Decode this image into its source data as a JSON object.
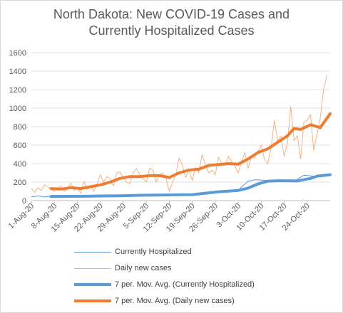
{
  "title_line1": "North Dakota:  New COVID-19 Cases and",
  "title_line2": "Currently Hospitalized Cases",
  "chart_data": {
    "type": "line",
    "title": "North Dakota:  New COVID-19 Cases and Currently Hospitalized Cases",
    "x_start": "2020-08-01",
    "x_end": "2020-10-31",
    "x_tick_labels": [
      "1-Aug-20",
      "8-Aug-20",
      "15-Aug-20",
      "22-Aug-20",
      "29-Aug-20",
      "5-Sep-20",
      "12-Sep-20",
      "19-Sep-20",
      "26-Sep-20",
      "3-Oct-20",
      "10-Oct-20",
      "17-Oct-20",
      "24-Oct-20"
    ],
    "ylim": [
      0,
      1600
    ],
    "y_ticks": [
      0,
      200,
      400,
      600,
      800,
      1000,
      1200,
      1400,
      1600
    ],
    "grid": true,
    "legend_position": "bottom",
    "series": [
      {
        "name": "Currently Hospitalized",
        "color": "#5b9bd5",
        "x": [
          "2020-08-01",
          "2020-08-03",
          "2020-08-05",
          "2020-08-10",
          "2020-08-20",
          "2020-08-28",
          "2020-09-05",
          "2020-09-15",
          "2020-09-22",
          "2020-09-27",
          "2020-10-03",
          "2020-10-06",
          "2020-10-08",
          "2020-10-11",
          "2020-10-13",
          "2020-10-16",
          "2020-10-20",
          "2020-10-23",
          "2020-10-26",
          "2020-10-29",
          "2020-10-31"
        ],
        "values": [
          40,
          50,
          40,
          45,
          50,
          55,
          60,
          65,
          80,
          100,
          115,
          210,
          225,
          220,
          210,
          215,
          210,
          275,
          265,
          280,
          280
        ]
      },
      {
        "name": "Daily new cases",
        "color": "#f4b183",
        "x": [
          "2020-08-01",
          "2020-08-02",
          "2020-08-03",
          "2020-08-04",
          "2020-08-05",
          "2020-08-06",
          "2020-08-07",
          "2020-08-08",
          "2020-08-09",
          "2020-08-10",
          "2020-08-11",
          "2020-08-12",
          "2020-08-13",
          "2020-08-14",
          "2020-08-15",
          "2020-08-16",
          "2020-08-17",
          "2020-08-18",
          "2020-08-19",
          "2020-08-20",
          "2020-08-21",
          "2020-08-22",
          "2020-08-23",
          "2020-08-24",
          "2020-08-25",
          "2020-08-26",
          "2020-08-27",
          "2020-08-28",
          "2020-08-29",
          "2020-08-30",
          "2020-08-31",
          "2020-09-01",
          "2020-09-02",
          "2020-09-03",
          "2020-09-04",
          "2020-09-05",
          "2020-09-06",
          "2020-09-07",
          "2020-09-08",
          "2020-09-09",
          "2020-09-10",
          "2020-09-11",
          "2020-09-12",
          "2020-09-13",
          "2020-09-14",
          "2020-09-15",
          "2020-09-16",
          "2020-09-17",
          "2020-09-18",
          "2020-09-19",
          "2020-09-20",
          "2020-09-21",
          "2020-09-22",
          "2020-09-23",
          "2020-09-24",
          "2020-09-25",
          "2020-09-26",
          "2020-09-27",
          "2020-09-28",
          "2020-09-29",
          "2020-09-30",
          "2020-10-01",
          "2020-10-02",
          "2020-10-03",
          "2020-10-04",
          "2020-10-05",
          "2020-10-06",
          "2020-10-07",
          "2020-10-08",
          "2020-10-09",
          "2020-10-10",
          "2020-10-11",
          "2020-10-12",
          "2020-10-13",
          "2020-10-14",
          "2020-10-15",
          "2020-10-16",
          "2020-10-17",
          "2020-10-18",
          "2020-10-19",
          "2020-10-20",
          "2020-10-21",
          "2020-10-22",
          "2020-10-23",
          "2020-10-24",
          "2020-10-25",
          "2020-10-26",
          "2020-10-27",
          "2020-10-28",
          "2020-10-29",
          "2020-10-30"
        ],
        "values": [
          130,
          90,
          140,
          110,
          170,
          150,
          120,
          100,
          140,
          160,
          100,
          130,
          190,
          110,
          140,
          80,
          210,
          120,
          160,
          100,
          180,
          280,
          200,
          260,
          240,
          160,
          300,
          310,
          250,
          200,
          180,
          300,
          350,
          280,
          240,
          200,
          350,
          330,
          200,
          280,
          300,
          240,
          100,
          200,
          280,
          460,
          380,
          250,
          330,
          220,
          360,
          300,
          500,
          380,
          300,
          330,
          280,
          470,
          400,
          380,
          480,
          420,
          370,
          300,
          420,
          520,
          350,
          480,
          460,
          530,
          600,
          450,
          400,
          560,
          870,
          650,
          700,
          480,
          620,
          1020,
          650,
          700,
          450,
          850,
          870,
          930,
          540,
          720,
          900,
          1200,
          1350
        ]
      },
      {
        "name": "7 per. Mov. Avg. (Currently Hospitalized)",
        "color": "#5b9bd5",
        "x": [
          "2020-08-07",
          "2020-08-12",
          "2020-08-17",
          "2020-08-22",
          "2020-08-28",
          "2020-09-03",
          "2020-09-08",
          "2020-09-14",
          "2020-09-19",
          "2020-09-23",
          "2020-09-27",
          "2020-10-03",
          "2020-10-06",
          "2020-10-09",
          "2020-10-12",
          "2020-10-15",
          "2020-10-17",
          "2020-10-21",
          "2020-10-25",
          "2020-10-27",
          "2020-10-31"
        ],
        "values": [
          45,
          46,
          47,
          50,
          52,
          58,
          60,
          62,
          65,
          80,
          95,
          110,
          135,
          180,
          210,
          215,
          215,
          212,
          240,
          265,
          280
        ]
      },
      {
        "name": "7 per. Mov. Avg. (Daily new cases)",
        "color": "#ed7d31",
        "x": [
          "2020-08-07",
          "2020-08-10",
          "2020-08-13",
          "2020-08-16",
          "2020-08-19",
          "2020-08-22",
          "2020-08-25",
          "2020-08-28",
          "2020-08-31",
          "2020-09-03",
          "2020-09-06",
          "2020-09-09",
          "2020-09-12",
          "2020-09-15",
          "2020-09-18",
          "2020-09-21",
          "2020-09-24",
          "2020-09-27",
          "2020-09-30",
          "2020-10-03",
          "2020-10-06",
          "2020-10-09",
          "2020-10-12",
          "2020-10-15",
          "2020-10-18",
          "2020-10-20",
          "2020-10-22",
          "2020-10-25",
          "2020-10-28",
          "2020-10-31"
        ],
        "values": [
          130,
          125,
          140,
          130,
          150,
          170,
          200,
          240,
          260,
          260,
          270,
          270,
          250,
          300,
          330,
          340,
          380,
          390,
          400,
          395,
          450,
          520,
          560,
          630,
          700,
          780,
          770,
          820,
          790,
          940
        ]
      }
    ]
  }
}
